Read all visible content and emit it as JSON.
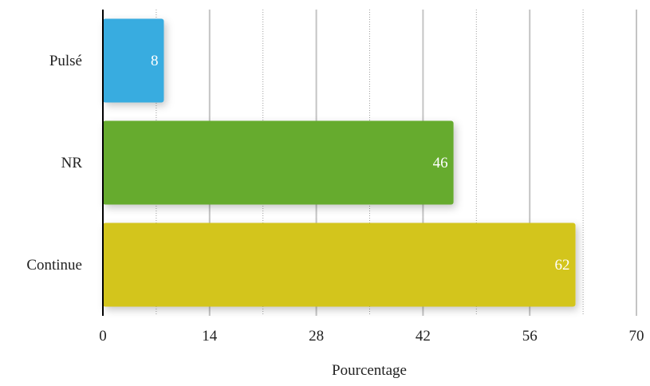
{
  "chart_data": {
    "type": "bar",
    "orientation": "horizontal",
    "categories": [
      "Pulsé",
      "NR",
      "Continue"
    ],
    "values": [
      8,
      46,
      62
    ],
    "colors": [
      "#38ace0",
      "#66ab2f",
      "#d3c51d"
    ],
    "xlabel": "Pourcentage",
    "ylabel": "",
    "xlim": [
      0,
      70
    ],
    "xticks": [
      "0",
      "14",
      "28",
      "42",
      "56",
      "70"
    ],
    "grid": true,
    "legend": "none",
    "data_labels": [
      "8",
      "46",
      "62"
    ]
  }
}
